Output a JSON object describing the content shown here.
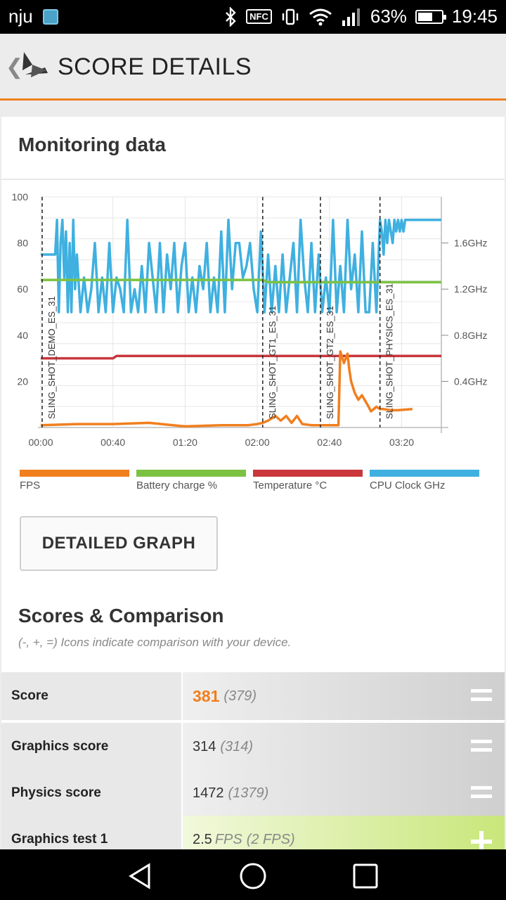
{
  "status_bar": {
    "carrier": "nju",
    "battery": "63%",
    "time": "19:45",
    "nfc": "NFC",
    "battery_level": 0.63
  },
  "app_bar": {
    "title": "SCORE DETAILS",
    "back_glyph": "❮"
  },
  "monitoring": {
    "title": "Monitoring data",
    "detailed_graph_button": "DETAILED GRAPH",
    "legend": [
      {
        "label": "FPS",
        "color": "#f07f1e"
      },
      {
        "label": "Battery charge %",
        "color": "#7cc242"
      },
      {
        "label": "Temperature °C",
        "color": "#c9363c"
      },
      {
        "label": "CPU Clock GHz",
        "color": "#3fb0e0"
      }
    ]
  },
  "chart_data": {
    "type": "line",
    "xlabel": "",
    "ylabel": "",
    "x_ticks": [
      "00:00",
      "00:40",
      "01:20",
      "02:00",
      "02:40",
      "03:20"
    ],
    "y_ticks_left": [
      "100",
      "80",
      "60",
      "40",
      "20"
    ],
    "y_ticks_right": [
      "1.6GHz",
      "1.2GHz",
      "0.8GHz",
      "0.4GHz"
    ],
    "ylim_left": [
      0,
      100
    ],
    "ylim_right_ghz": [
      0,
      2.0
    ],
    "xlim_seconds": [
      0,
      222
    ],
    "grid": true,
    "sections": [
      {
        "label": "SLING_SHOT_DEMO_ES_31",
        "start_s": 0
      },
      {
        "label": "SLING_SHOT_GT1_ES_31",
        "start_s": 123
      },
      {
        "label": "SLING_SHOT_GT2_ES_31",
        "start_s": 155
      },
      {
        "label": "SLING_SHOT_PHYSICS_ES_31",
        "start_s": 188
      }
    ],
    "series": [
      {
        "name": "FPS",
        "color": "#f07f1e",
        "x": [
          0,
          20,
          40,
          60,
          80,
          100,
          115,
          120,
          123,
          126,
          130,
          133,
          136,
          139,
          142,
          145,
          150,
          155,
          162,
          165,
          166,
          168,
          170,
          171,
          172,
          174,
          176,
          178,
          181,
          183,
          186,
          188,
          190,
          194,
          198,
          206
        ],
        "y": [
          1,
          1.5,
          1.5,
          2,
          0.5,
          1,
          1,
          1.5,
          2,
          3,
          5,
          3,
          5,
          2,
          5,
          1.5,
          1,
          1,
          1,
          1,
          33,
          28,
          32,
          25,
          20,
          15,
          12,
          14,
          10,
          7,
          9,
          8,
          8,
          7.5,
          7.5,
          8
        ]
      },
      {
        "name": "Battery charge %",
        "color": "#7cc242",
        "x": [
          0,
          123,
          126,
          188,
          222
        ],
        "y": [
          64,
          64,
          63,
          63,
          63
        ]
      },
      {
        "name": "Temperature °C",
        "color": "#c9363c",
        "x": [
          0,
          40,
          42,
          222
        ],
        "y": [
          30,
          30,
          31,
          31
        ]
      },
      {
        "name": "CPU Clock GHz",
        "color": "#3fb0e0",
        "x": [
          0,
          8,
          9,
          10,
          11,
          12,
          13,
          14,
          15,
          16,
          17,
          18,
          19,
          20,
          22,
          24,
          26,
          28,
          30,
          32,
          34,
          36,
          38,
          40,
          42,
          44,
          46,
          48,
          50,
          52,
          54,
          56,
          58,
          60,
          62,
          64,
          66,
          68,
          70,
          72,
          74,
          76,
          78,
          80,
          82,
          84,
          86,
          88,
          90,
          92,
          94,
          96,
          98,
          100,
          102,
          104,
          106,
          108,
          110,
          112,
          114,
          116,
          118,
          120,
          122,
          124,
          126,
          128,
          130,
          132,
          134,
          136,
          138,
          140,
          142,
          144,
          146,
          148,
          150,
          152,
          154,
          156,
          158,
          160,
          162,
          164,
          166,
          168,
          170,
          172,
          174,
          176,
          178,
          180,
          182,
          184,
          186,
          188,
          189,
          190,
          191,
          192,
          193,
          194,
          195,
          196,
          197,
          198,
          199,
          200,
          201,
          202,
          204,
          206,
          222
        ],
        "y": [
          1.5,
          1.5,
          1.8,
          1.0,
          1.6,
          1.8,
          1.3,
          1.7,
          1.0,
          1.6,
          1.0,
          1.8,
          1.2,
          1.5,
          1.0,
          1.3,
          1.0,
          1.2,
          1.6,
          1.0,
          1.3,
          1.0,
          1.6,
          1.0,
          1.3,
          1.2,
          1.0,
          1.8,
          1.0,
          1.2,
          1.0,
          1.4,
          1.0,
          1.6,
          1.3,
          1.0,
          1.6,
          1.0,
          1.5,
          1.2,
          1.6,
          1.0,
          1.4,
          1.6,
          1.0,
          1.3,
          1.0,
          1.4,
          1.2,
          1.6,
          1.0,
          1.3,
          1.0,
          1.7,
          1.0,
          1.8,
          1.2,
          1.6,
          1.6,
          1.3,
          1.4,
          1.6,
          1.2,
          1.0,
          1.7,
          1.0,
          1.5,
          1.0,
          1.4,
          1.0,
          1.5,
          1.0,
          1.3,
          1.6,
          1.0,
          1.8,
          1.3,
          1.0,
          1.6,
          1.0,
          1.5,
          1.0,
          1.3,
          1.0,
          1.8,
          1.0,
          1.4,
          1.0,
          1.8,
          1.2,
          1.5,
          1.0,
          1.7,
          1.0,
          1.0,
          1.6,
          1.0,
          1.8,
          1.7,
          1.5,
          1.8,
          1.6,
          1.8,
          1.7,
          1.6,
          1.8,
          1.7,
          1.8,
          1.7,
          1.8,
          1.7,
          1.8,
          1.8,
          1.8,
          1.8
        ]
      }
    ]
  },
  "scores": {
    "title": "Scores & Comparison",
    "subtitle": "(-, +, =) Icons indicate comparison with your device.",
    "rows": [
      {
        "label": "Score",
        "value": "381",
        "compare": "(379)",
        "unit": "",
        "indicator": "equal",
        "highlight": true
      },
      {
        "label": "Graphics score",
        "value": "314",
        "compare": "(314)",
        "unit": "",
        "indicator": "equal",
        "highlight": false
      },
      {
        "label": "Physics score",
        "value": "1472",
        "compare": "(1379)",
        "unit": "",
        "indicator": "equal",
        "highlight": false
      },
      {
        "label": "Graphics test 1",
        "value": "2.5",
        "compare": "(2 FPS)",
        "unit": "FPS",
        "indicator": "plus",
        "highlight": false
      }
    ]
  }
}
